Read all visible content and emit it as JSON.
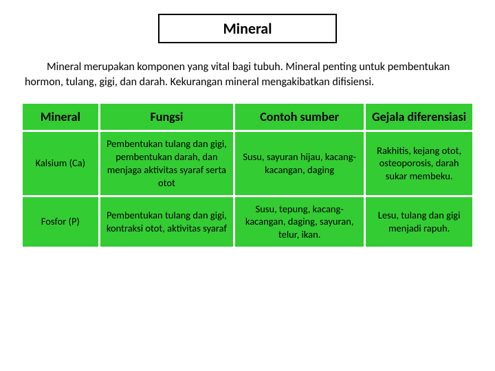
{
  "title": "Mineral",
  "paragraph": "Mineral merupakan komponen yang vital bagi tubuh. Mineral penting untuk pembentukan hormon, tulang, gigi, dan darah. Kekurangan mineral mengakibatkan difisiensi.",
  "table": {
    "headers": [
      "Mineral",
      "Fungsi",
      "Contoh sumber",
      "Gejala diferensiasi"
    ],
    "rows": [
      {
        "mineral": "Kalsium (Ca)",
        "fungsi": "Pembentukan tulang dan gigi, pembentukan darah, dan menjaga aktivitas syaraf serta otot",
        "contoh": "Susu, sayuran hijau, kacang-kacangan, daging",
        "gejala": "Rakhitis, kejang otot, osteoporosis, darah sukar membeku."
      },
      {
        "mineral": "Fosfor (P)",
        "fungsi": "Pembentukan tulang dan gigi, kontraksi otot, aktivitas syaraf",
        "contoh": "Susu, tepung, kacang-kacangan, daging, sayuran, telur, ikan.",
        "gejala": "Lesu, tulang dan gigi menjadi rapuh."
      }
    ]
  },
  "colors": {
    "cell_bg": "#33cc33",
    "page_bg": "#ffffff",
    "text": "#000000",
    "border": "#000000"
  }
}
